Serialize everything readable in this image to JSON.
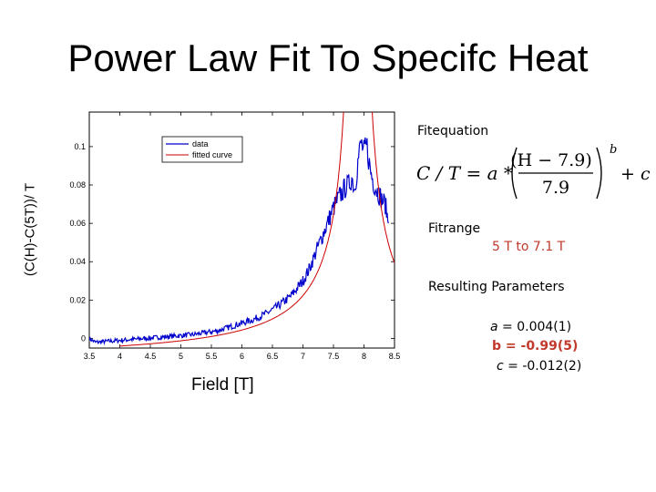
{
  "slide": {
    "title": "Power Law Fit To Specifc Heat"
  },
  "panel": {
    "equation_heading": "Fitequation",
    "range_heading": "Fitrange",
    "range_value": "5 T to 7.1 T",
    "params_heading": "Resulting Parameters",
    "params": [
      {
        "symbol": "a",
        "text": " = 0.004(1)",
        "color": "#000000"
      },
      {
        "symbol": "b",
        "text": " = -0.99(5)",
        "color": "#c0392b"
      },
      {
        "symbol": "c",
        "text": " = -0.012(2)",
        "color": "#000000"
      }
    ],
    "equation": {
      "lhs": "C / T = a *",
      "numerator": "(H − 7.9)",
      "denominator": "7.9",
      "exponent": "b",
      "tail": "+ c"
    }
  },
  "chart_data": {
    "type": "line",
    "xlabel": "Field [T]",
    "ylabel": "(C(H)-C(5T))/ T",
    "xlim": [
      3.5,
      8.5
    ],
    "ylim": [
      -0.005,
      0.118
    ],
    "xticks": [
      "3.5",
      "4",
      "4.5",
      "5",
      "5.5",
      "6",
      "6.5",
      "7",
      "7.5",
      "8",
      "8.5"
    ],
    "yticks": [
      "0",
      "0.02",
      "0.04",
      "0.06",
      "0.08",
      "0.1"
    ],
    "legend_position": "top-center",
    "series": [
      {
        "name": "data",
        "color": "#0000cc",
        "x": [
          3.5,
          3.6,
          3.8,
          4.0,
          4.2,
          4.4,
          4.6,
          4.8,
          5.0,
          5.2,
          5.4,
          5.6,
          5.8,
          6.0,
          6.2,
          6.4,
          6.6,
          6.8,
          7.0,
          7.1,
          7.2,
          7.3,
          7.4,
          7.5,
          7.6,
          7.7,
          7.75,
          7.8,
          7.85,
          7.9,
          7.95,
          8.0,
          8.05,
          8.1,
          8.15,
          8.2,
          8.25,
          8.3,
          8.35,
          8.4
        ],
        "y": [
          0.0,
          -0.002,
          -0.0015,
          -0.001,
          -0.0005,
          0.0,
          0.0005,
          0.001,
          0.0015,
          0.002,
          0.003,
          0.004,
          0.006,
          0.008,
          0.01,
          0.013,
          0.017,
          0.022,
          0.03,
          0.036,
          0.044,
          0.052,
          0.06,
          0.068,
          0.074,
          0.079,
          0.08,
          0.084,
          0.078,
          0.092,
          0.102,
          0.097,
          0.1,
          0.088,
          0.082,
          0.078,
          0.075,
          0.072,
          0.07,
          0.06
        ]
      },
      {
        "name": "fitted curve",
        "color": "#cc0000",
        "fit": {
          "a": 0.004,
          "b": -0.99,
          "c": -0.012,
          "h0": 7.9,
          "x_from": 4.0,
          "x_to": 8.5
        }
      }
    ]
  }
}
